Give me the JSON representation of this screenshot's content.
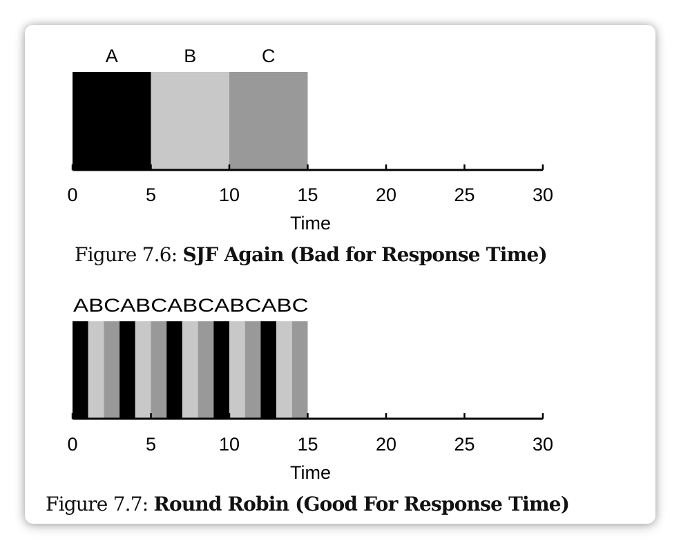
{
  "colors": {
    "A": "#000000",
    "B": "#c8c8c8",
    "C": "#999999"
  },
  "figures": [
    {
      "caption_prefix": "Figure 7.6:",
      "caption_title": "SJF Again (Bad for Response Time)"
    },
    {
      "caption_prefix": "Figure 7.7:",
      "caption_title": "Round Robin (Good For Response Time)"
    }
  ],
  "chart_data": [
    {
      "type": "bar",
      "xlabel": "Time",
      "xlim": [
        0,
        30
      ],
      "xticks": [
        0,
        5,
        10,
        15,
        20,
        25,
        30
      ],
      "segments": [
        {
          "job": "A",
          "start": 0,
          "end": 5
        },
        {
          "job": "B",
          "start": 5,
          "end": 10
        },
        {
          "job": "C",
          "start": 10,
          "end": 15
        }
      ]
    },
    {
      "type": "bar",
      "xlabel": "Time",
      "xlim": [
        0,
        30
      ],
      "xticks": [
        0,
        5,
        10,
        15,
        20,
        25,
        30
      ],
      "top_label": "ABCABCABCABCABC",
      "segments": [
        {
          "job": "A",
          "start": 0,
          "end": 1
        },
        {
          "job": "B",
          "start": 1,
          "end": 2
        },
        {
          "job": "C",
          "start": 2,
          "end": 3
        },
        {
          "job": "A",
          "start": 3,
          "end": 4
        },
        {
          "job": "B",
          "start": 4,
          "end": 5
        },
        {
          "job": "C",
          "start": 5,
          "end": 6
        },
        {
          "job": "A",
          "start": 6,
          "end": 7
        },
        {
          "job": "B",
          "start": 7,
          "end": 8
        },
        {
          "job": "C",
          "start": 8,
          "end": 9
        },
        {
          "job": "A",
          "start": 9,
          "end": 10
        },
        {
          "job": "B",
          "start": 10,
          "end": 11
        },
        {
          "job": "C",
          "start": 11,
          "end": 12
        },
        {
          "job": "A",
          "start": 12,
          "end": 13
        },
        {
          "job": "B",
          "start": 13,
          "end": 14
        },
        {
          "job": "C",
          "start": 14,
          "end": 15
        }
      ]
    }
  ]
}
